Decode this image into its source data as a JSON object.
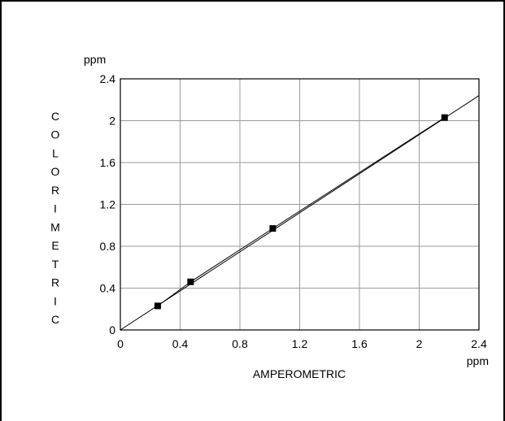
{
  "chart_data": {
    "type": "scatter",
    "xlabel": "AMPEROMETRIC",
    "ylabel": "COLORIMETRIC",
    "x_unit": "ppm",
    "y_unit": "ppm",
    "xlim": [
      0,
      2.4
    ],
    "ylim": [
      0,
      2.4
    ],
    "x_ticks": [
      "0",
      "0.4",
      "0.8",
      "1.2",
      "1.6",
      "2",
      "2.4"
    ],
    "y_ticks": [
      "0",
      "0.4",
      "0.8",
      "1.2",
      "1.6",
      "2",
      "2.4"
    ],
    "grid": true,
    "points": [
      {
        "x": 0.25,
        "y": 0.23
      },
      {
        "x": 0.47,
        "y": 0.46
      },
      {
        "x": 1.02,
        "y": 0.97
      },
      {
        "x": 2.17,
        "y": 2.03
      }
    ],
    "lines": [
      {
        "kind": "identity",
        "points": [
          [
            0,
            0
          ],
          [
            2.4,
            2.24
          ]
        ]
      },
      {
        "kind": "connect",
        "points": [
          [
            0.25,
            0.23
          ],
          [
            0.47,
            0.46
          ],
          [
            1.02,
            0.97
          ],
          [
            2.17,
            2.03
          ]
        ]
      }
    ]
  }
}
